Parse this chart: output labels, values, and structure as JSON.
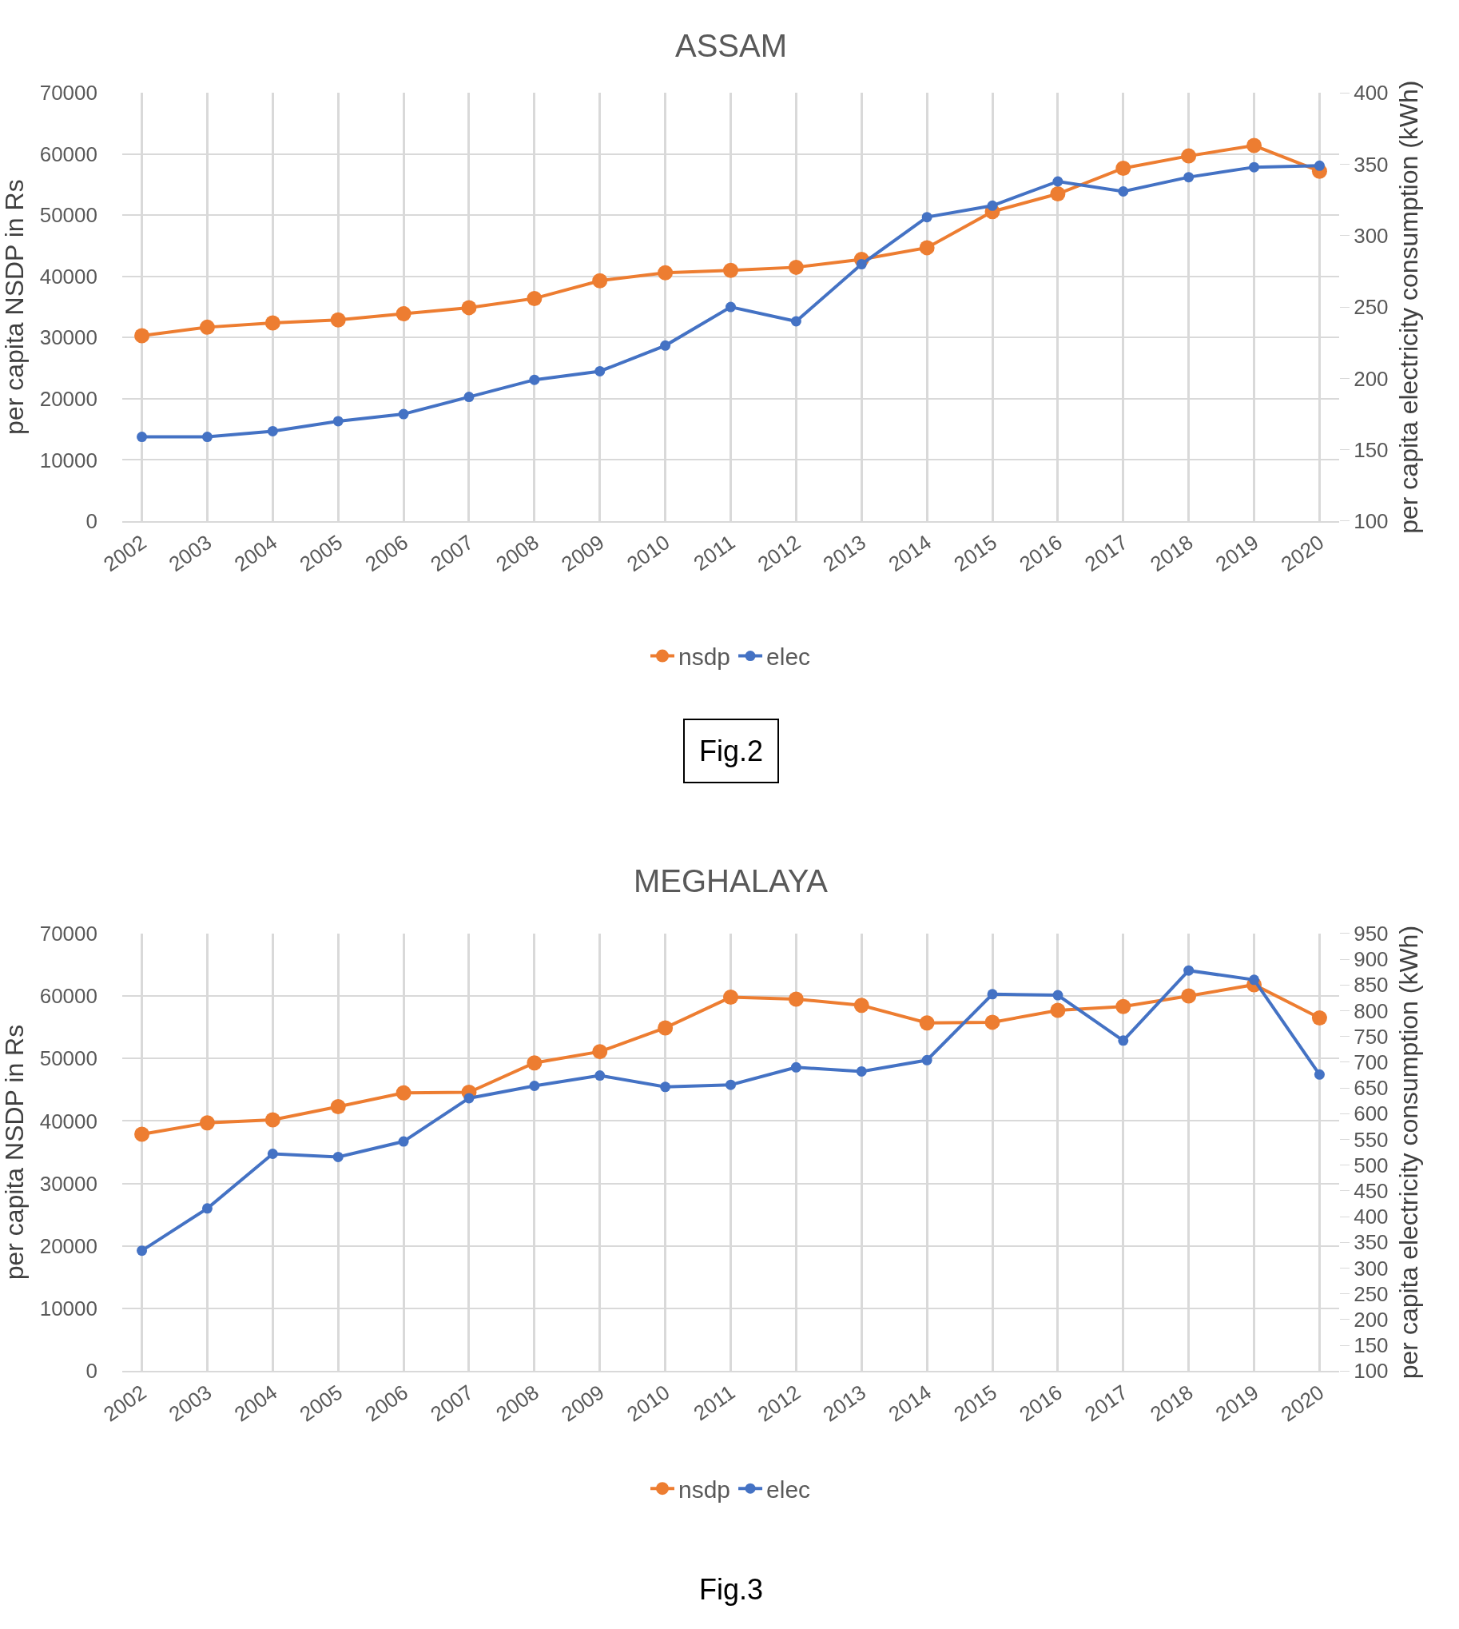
{
  "chart_data": [
    {
      "type": "line",
      "title": "ASSAM",
      "ylabel": "per capita NSDP in Rs",
      "y2label": "per capita electricity consumption (kWh)",
      "annotations": [
        "Fig.2"
      ],
      "categories": [
        "2002",
        "2003",
        "2004",
        "2005",
        "2006",
        "2007",
        "2008",
        "2009",
        "2010",
        "2011",
        "2012",
        "2013",
        "2014",
        "2015",
        "2016",
        "2017",
        "2018",
        "2019",
        "2020"
      ],
      "series": [
        {
          "name": "nsdp",
          "color": "#ed7d31",
          "values": [
            30300,
            31700,
            32400,
            32900,
            33900,
            34900,
            36400,
            39300,
            40600,
            41000,
            41500,
            42800,
            44700,
            50600,
            53500,
            57700,
            59700,
            61400,
            57200
          ]
        },
        {
          "name": "elec",
          "color": "#4472c4",
          "axis": "y2",
          "values": [
            159,
            159,
            163,
            170,
            175,
            187,
            199,
            205,
            223,
            250,
            240,
            280,
            313,
            321,
            338,
            331,
            341,
            348,
            349
          ]
        }
      ],
      "ylim": [
        0,
        70000
      ],
      "yticks": [
        0,
        10000,
        20000,
        30000,
        40000,
        50000,
        60000,
        70000
      ],
      "y2lim": [
        100,
        400
      ],
      "y2ticks": [
        100,
        150,
        200,
        250,
        300,
        350,
        400
      ],
      "grid": true,
      "legend": "bottom",
      "marker": "circle",
      "line_style": "solid"
    },
    {
      "type": "line",
      "title": "MEGHALAYA",
      "ylabel": "per capita NSDP in Rs",
      "y2label": "per capita electricity consumption (kWh)",
      "annotations": [
        "Fig.3"
      ],
      "categories": [
        "2002",
        "2003",
        "2004",
        "2005",
        "2006",
        "2007",
        "2008",
        "2009",
        "2010",
        "2011",
        "2012",
        "2013",
        "2014",
        "2015",
        "2016",
        "2017",
        "2018",
        "2019",
        "2020"
      ],
      "series": [
        {
          "name": "nsdp",
          "color": "#ed7d31",
          "values": [
            37900,
            39700,
            40200,
            42300,
            44500,
            44600,
            49300,
            51100,
            54900,
            59800,
            59500,
            58500,
            55700,
            55800,
            57700,
            58300,
            60000,
            61800,
            56500
          ]
        },
        {
          "name": "elec",
          "color": "#4472c4",
          "axis": "y2",
          "values": [
            334,
            416,
            522,
            516,
            546,
            630,
            654,
            674,
            652,
            656,
            690,
            682,
            704,
            832,
            830,
            742,
            878,
            860,
            676
          ]
        }
      ],
      "ylim": [
        0,
        70000
      ],
      "yticks": [
        0,
        10000,
        20000,
        30000,
        40000,
        50000,
        60000,
        70000
      ],
      "y2lim": [
        100,
        950
      ],
      "y2ticks": [
        100,
        150,
        200,
        250,
        300,
        350,
        400,
        450,
        500,
        550,
        600,
        650,
        700,
        750,
        800,
        850,
        900,
        950
      ],
      "grid": true,
      "legend": "bottom",
      "marker": "circle",
      "line_style": "solid"
    }
  ]
}
